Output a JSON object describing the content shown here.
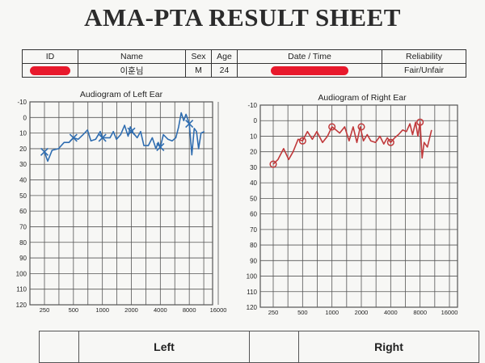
{
  "title": "AMA-PTA RESULT SHEET",
  "info_table": {
    "headers": {
      "id": "ID",
      "name": "Name",
      "sex": "Sex",
      "age": "Age",
      "date": "Date / Time",
      "reliability": "Reliability"
    },
    "values": {
      "name": "이훈님",
      "sex": "M",
      "age": "24",
      "reliability": "Fair/Unfair"
    }
  },
  "footer": {
    "left": "Left",
    "right": "Right"
  },
  "colors": {
    "left_ear": "#2f6db0",
    "right_ear": "#c0393b",
    "redaction": "#e8192c",
    "grid": "#555555"
  },
  "chart_data": [
    {
      "type": "line",
      "title": "Audiogram of Left Ear",
      "y_tick_labels": [
        "-10",
        "0",
        "10",
        "20",
        "30",
        "40",
        "50",
        "60",
        "70",
        "80",
        "90",
        "100",
        "110",
        "120"
      ],
      "x_tick_labels": [
        "250",
        "500",
        "1000",
        "2000",
        "4000",
        "8000",
        "16000"
      ],
      "y_range": [
        -10,
        120
      ],
      "y_inverted": true,
      "x_scale": "log",
      "grid": true,
      "series": [
        {
          "color": "#2f6db0",
          "marker": "x",
          "points": [
            [
              250,
              22
            ],
            [
              270,
              28
            ],
            [
              300,
              21
            ],
            [
              350,
              20
            ],
            [
              400,
              16
            ],
            [
              450,
              16
            ],
            [
              500,
              13
            ],
            [
              560,
              14
            ],
            [
              630,
              11
            ],
            [
              700,
              8
            ],
            [
              760,
              15
            ],
            [
              850,
              14
            ],
            [
              950,
              9
            ],
            [
              1000,
              13
            ],
            [
              1100,
              13
            ],
            [
              1200,
              13
            ],
            [
              1300,
              9
            ],
            [
              1400,
              14
            ],
            [
              1550,
              11
            ],
            [
              1700,
              5
            ],
            [
              1850,
              12
            ],
            [
              1950,
              6
            ],
            [
              2100,
              10
            ],
            [
              2300,
              13
            ],
            [
              2500,
              9
            ],
            [
              2700,
              18
            ],
            [
              3000,
              18
            ],
            [
              3300,
              13
            ],
            [
              3600,
              20
            ],
            [
              3800,
              16
            ],
            [
              4000,
              19
            ],
            [
              4300,
              11
            ],
            [
              4800,
              14
            ],
            [
              5300,
              15
            ],
            [
              5800,
              13
            ],
            [
              6200,
              6
            ],
            [
              6600,
              -3
            ],
            [
              7000,
              2
            ],
            [
              7400,
              -2
            ],
            [
              8000,
              4
            ],
            [
              8500,
              24
            ],
            [
              9000,
              7
            ],
            [
              9500,
              9
            ],
            [
              10000,
              20
            ],
            [
              10600,
              10
            ],
            [
              11500,
              9
            ]
          ],
          "x_markers": [
            [
              250,
              22
            ],
            [
              500,
              13
            ],
            [
              1000,
              13
            ],
            [
              2000,
              9
            ],
            [
              4000,
              19
            ],
            [
              8000,
              4
            ]
          ]
        }
      ]
    },
    {
      "type": "line",
      "title": "Audiogram of Right Ear",
      "y_tick_labels": [
        "-10",
        "0",
        "10",
        "20",
        "30",
        "40",
        "50",
        "60",
        "70",
        "80",
        "90",
        "100",
        "110",
        "120"
      ],
      "x_tick_labels": [
        "250",
        "500",
        "1000",
        "2000",
        "4000",
        "8000",
        "16000"
      ],
      "y_range": [
        -10,
        120
      ],
      "y_inverted": true,
      "x_scale": "log",
      "grid": true,
      "series": [
        {
          "color": "#c0393b",
          "marker": "o",
          "points": [
            [
              250,
              28
            ],
            [
              280,
              25
            ],
            [
              320,
              18
            ],
            [
              360,
              25
            ],
            [
              400,
              20
            ],
            [
              450,
              12
            ],
            [
              500,
              13
            ],
            [
              560,
              7
            ],
            [
              630,
              12
            ],
            [
              700,
              7
            ],
            [
              800,
              14
            ],
            [
              900,
              10
            ],
            [
              1000,
              4
            ],
            [
              1100,
              6
            ],
            [
              1200,
              8
            ],
            [
              1350,
              4
            ],
            [
              1500,
              13
            ],
            [
              1650,
              4
            ],
            [
              1800,
              14
            ],
            [
              1950,
              4
            ],
            [
              2100,
              13
            ],
            [
              2300,
              9
            ],
            [
              2500,
              13
            ],
            [
              2800,
              14
            ],
            [
              3100,
              10
            ],
            [
              3400,
              15
            ],
            [
              3700,
              11
            ],
            [
              4000,
              14
            ],
            [
              4400,
              11
            ],
            [
              4800,
              9
            ],
            [
              5300,
              6
            ],
            [
              5800,
              7
            ],
            [
              6300,
              2
            ],
            [
              6700,
              9
            ],
            [
              7200,
              1
            ],
            [
              7600,
              10
            ],
            [
              8000,
              1
            ],
            [
              8400,
              24
            ],
            [
              8800,
              14
            ],
            [
              9500,
              17
            ],
            [
              10500,
              6
            ]
          ],
          "o_markers": [
            [
              250,
              28
            ],
            [
              500,
              13
            ],
            [
              1000,
              4
            ],
            [
              2000,
              4
            ],
            [
              4000,
              14
            ],
            [
              8000,
              1
            ]
          ]
        }
      ]
    }
  ]
}
